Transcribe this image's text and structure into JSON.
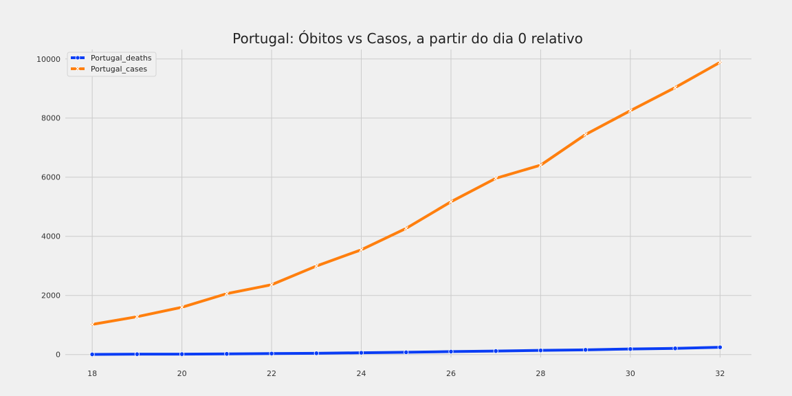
{
  "chart_data": {
    "type": "line",
    "title": "Portugal: Óbitos vs Casos, a partir do dia 0 relativo",
    "xlabel": "",
    "ylabel": "",
    "x": [
      18,
      19,
      20,
      21,
      22,
      23,
      24,
      25,
      26,
      27,
      28,
      29,
      30,
      31,
      32
    ],
    "xticks": [
      18,
      20,
      22,
      24,
      26,
      28,
      30,
      32
    ],
    "yticks": [
      0,
      2000,
      4000,
      6000,
      8000,
      10000
    ],
    "xlim": [
      17.4,
      32.7
    ],
    "ylim": [
      -100,
      10320
    ],
    "grid": true,
    "legend_position": "top-left",
    "series": [
      {
        "name": "Portugal_deaths",
        "color": "#0a3df5",
        "marker": "circle",
        "values": [
          6,
          12,
          14,
          23,
          33,
          43,
          60,
          76,
          100,
          119,
          140,
          160,
          187,
          209,
          246
        ]
      },
      {
        "name": "Portugal_cases",
        "color": "#ff7f0e",
        "marker": "x",
        "values": [
          1020,
          1280,
          1600,
          2060,
          2362,
          2995,
          3544,
          4268,
          5170,
          5962,
          6408,
          7443,
          8251,
          9034,
          9886
        ]
      }
    ]
  }
}
